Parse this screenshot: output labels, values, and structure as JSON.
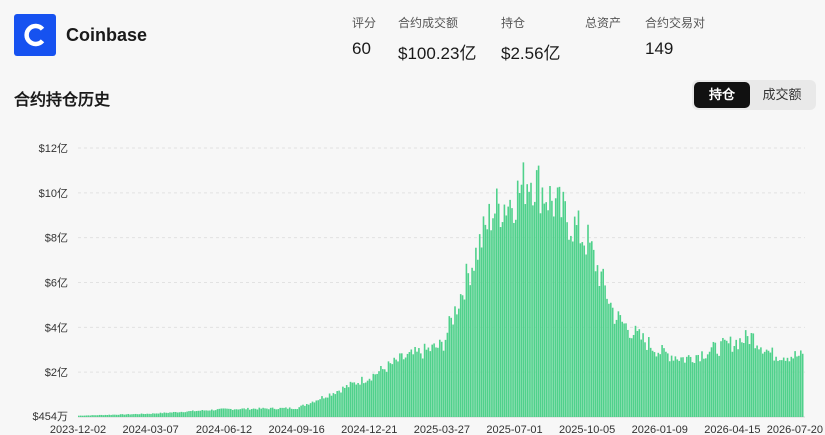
{
  "header": {
    "brand": "Coinbase",
    "logo_icon": "coinbase-logo-icon",
    "stats": [
      {
        "label": "评分",
        "value": "60"
      },
      {
        "label": "合约成交额",
        "value": "$100.23亿"
      },
      {
        "label": "持仓",
        "value": "$2.56亿"
      },
      {
        "label": "总资产",
        "value": ""
      },
      {
        "label": "合约交易对",
        "value": "149"
      }
    ]
  },
  "section": {
    "title": "合约持仓历史",
    "tabs": [
      {
        "label": "持仓",
        "active": true
      },
      {
        "label": "成交额",
        "active": false
      }
    ]
  },
  "chart_data": {
    "type": "bar",
    "title": "",
    "color": "#4fd18b",
    "y_tick_labels": [
      "$454万",
      "$2亿",
      "$4亿",
      "$6亿",
      "$8亿",
      "$10亿",
      "$12亿"
    ],
    "y_tick_values": [
      0.0454,
      2,
      4,
      6,
      8,
      10,
      12
    ],
    "ylim": [
      0,
      12
    ],
    "x_tick_labels": [
      "2023-12-02",
      "2024-03-07",
      "2024-06-12",
      "2024-09-16",
      "2024-12-21",
      "2025-03-27",
      "2025-07-01",
      "2025-10-05",
      "2026-01-09",
      "2026-04-15",
      "2026-07-20"
    ],
    "series_keypoints": [
      {
        "x": "2023-12-02",
        "y": 0.06
      },
      {
        "x": "2024-03-07",
        "y": 0.15
      },
      {
        "x": "2024-06-12",
        "y": 0.35
      },
      {
        "x": "2024-09-16",
        "y": 0.4
      },
      {
        "x": "2024-11-10",
        "y": 1.2
      },
      {
        "x": "2024-12-21",
        "y": 1.8
      },
      {
        "x": "2025-02-01",
        "y": 2.6
      },
      {
        "x": "2025-03-27",
        "y": 3.2
      },
      {
        "x": "2025-05-01",
        "y": 6.5
      },
      {
        "x": "2025-06-01",
        "y": 9.2
      },
      {
        "x": "2025-07-01",
        "y": 9.8
      },
      {
        "x": "2025-07-20",
        "y": 10.8
      },
      {
        "x": "2025-08-20",
        "y": 9.6
      },
      {
        "x": "2025-10-05",
        "y": 7.8
      },
      {
        "x": "2025-11-10",
        "y": 4.5
      },
      {
        "x": "2025-12-10",
        "y": 3.6
      },
      {
        "x": "2026-01-09",
        "y": 2.9
      },
      {
        "x": "2026-02-10",
        "y": 2.6
      },
      {
        "x": "2026-04-15",
        "y": 3.3
      },
      {
        "x": "2026-05-10",
        "y": 3.6
      },
      {
        "x": "2026-06-05",
        "y": 2.8
      },
      {
        "x": "2026-07-20",
        "y": 2.7
      }
    ]
  }
}
